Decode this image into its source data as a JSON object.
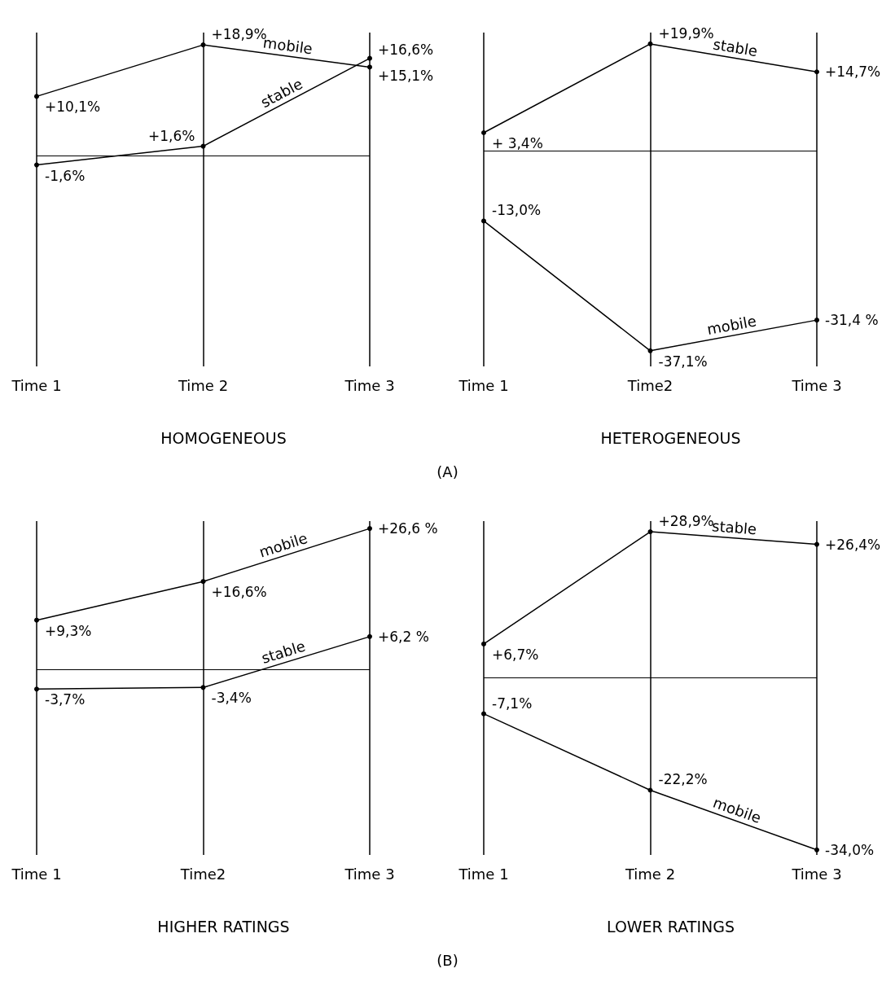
{
  "chart_data": [
    {
      "type": "line",
      "title": "HOMOGENEOUS",
      "categories": [
        "Time 1",
        "Time 2",
        "Time 3"
      ],
      "ylim": [
        -36,
        21
      ],
      "tick_labels": "x",
      "grid": "x",
      "marker": "circle",
      "line_style": "solid",
      "ref_lines": [
        {
          "axis": "y",
          "value": 0
        }
      ],
      "annotations": [
        "(A)"
      ],
      "series": [
        {
          "name": "mobile",
          "color": "#000000",
          "values": [
            10.1,
            18.9,
            15.1
          ],
          "value_labels": [
            "+10,1%",
            "+18,9%",
            "+15,1%"
          ]
        },
        {
          "name": "stable",
          "color": "#000000",
          "values": [
            -1.6,
            1.6,
            16.6
          ],
          "value_labels": [
            "-1,6%",
            "+1,6%",
            "+16,6%"
          ]
        }
      ]
    },
    {
      "type": "line",
      "title": "HETEROGENEOUS",
      "categories": [
        "Time 1",
        "Time2",
        "Time 3"
      ],
      "ylim": [
        -40,
        22
      ],
      "tick_labels": "x",
      "grid": "x",
      "marker": "circle",
      "line_style": "solid",
      "ref_lines": [
        {
          "axis": "y",
          "value": 0
        }
      ],
      "series": [
        {
          "name": "stable",
          "color": "#000000",
          "values": [
            3.4,
            19.9,
            14.7
          ],
          "value_labels": [
            "+ 3,4%",
            "+19,9%",
            "+14,7%"
          ]
        },
        {
          "name": "mobile",
          "color": "#000000",
          "values": [
            -13.0,
            -37.1,
            -31.4
          ],
          "value_labels": [
            "-13,0%",
            "-37,1%",
            "-31,4 %"
          ]
        }
      ]
    },
    {
      "type": "line",
      "title": "HIGHER RATINGS",
      "categories": [
        "Time 1",
        "Time2",
        "Time 3"
      ],
      "ylim": [
        -35,
        28
      ],
      "tick_labels": "x",
      "grid": "x",
      "marker": "circle",
      "line_style": "solid",
      "ref_lines": [
        {
          "axis": "y",
          "value": 0
        }
      ],
      "annotations": [
        "(B)"
      ],
      "series": [
        {
          "name": "mobile",
          "color": "#000000",
          "values": [
            9.3,
            16.6,
            26.6
          ],
          "value_labels": [
            "+9,3%",
            "+16,6%",
            "+26,6 %"
          ]
        },
        {
          "name": "stable",
          "color": "#000000",
          "values": [
            -3.7,
            -3.4,
            6.2
          ],
          "value_labels": [
            "-3,7%",
            "-3,4%",
            "+6,2 %"
          ]
        }
      ]
    },
    {
      "type": "line",
      "title": "LOWER RATINGS",
      "categories": [
        "Time 1",
        "Time 2",
        "Time 3"
      ],
      "ylim": [
        -35,
        31
      ],
      "tick_labels": "x",
      "grid": "x",
      "marker": "circle",
      "line_style": "solid",
      "ref_lines": [
        {
          "axis": "y",
          "value": 0
        }
      ],
      "series": [
        {
          "name": "stable",
          "color": "#000000",
          "values": [
            6.7,
            28.9,
            26.4
          ],
          "value_labels": [
            "+6,7%",
            "+28,9%",
            "+26,4%"
          ]
        },
        {
          "name": "mobile",
          "color": "#000000",
          "values": [
            -7.1,
            -22.2,
            -34.0
          ],
          "value_labels": [
            "-7,1%",
            "-22,2%",
            "-34,0%"
          ]
        }
      ]
    }
  ]
}
